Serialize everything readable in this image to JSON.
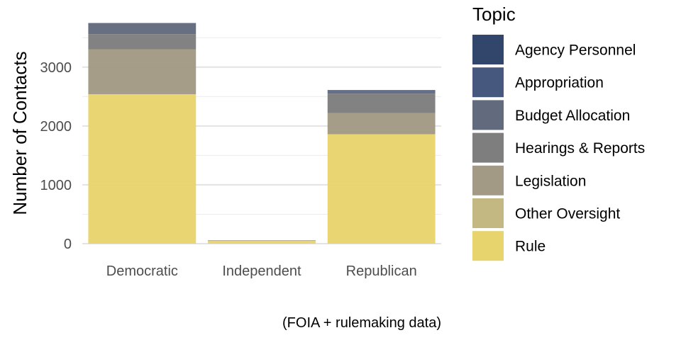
{
  "chart_data": {
    "type": "bar",
    "stacked": true,
    "categories": [
      "Democratic",
      "Independent",
      "Republican"
    ],
    "ylabel": "Number of Contacts",
    "caption": "(FOIA + rulemaking data)",
    "ylim": [
      0,
      3900
    ],
    "yticks": [
      0,
      1000,
      2000,
      3000
    ],
    "ytick_labels": [
      "0",
      "1000",
      "2000",
      "3000"
    ],
    "grid": true,
    "legend": {
      "title": "Topic",
      "placement": "right"
    },
    "series": [
      {
        "name": "Rule",
        "color": "#e8d46c",
        "values": [
          2540,
          45,
          1860
        ]
      },
      {
        "name": "Other Oversight",
        "color": "#c3b882",
        "values": [
          0,
          5,
          0
        ]
      },
      {
        "name": "Legislation",
        "color": "#a29a84",
        "values": [
          760,
          5,
          360
        ]
      },
      {
        "name": "Hearings & Reports",
        "color": "#7e7e7e",
        "values": [
          260,
          2,
          330
        ]
      },
      {
        "name": "Budget Allocation",
        "color": "#626a7e",
        "values": [
          190,
          2,
          40
        ]
      },
      {
        "name": "Appropriation",
        "color": "#47587f",
        "values": [
          0,
          0,
          20
        ]
      },
      {
        "name": "Agency Personnel",
        "color": "#32456a",
        "values": [
          0,
          0,
          0
        ]
      }
    ]
  }
}
